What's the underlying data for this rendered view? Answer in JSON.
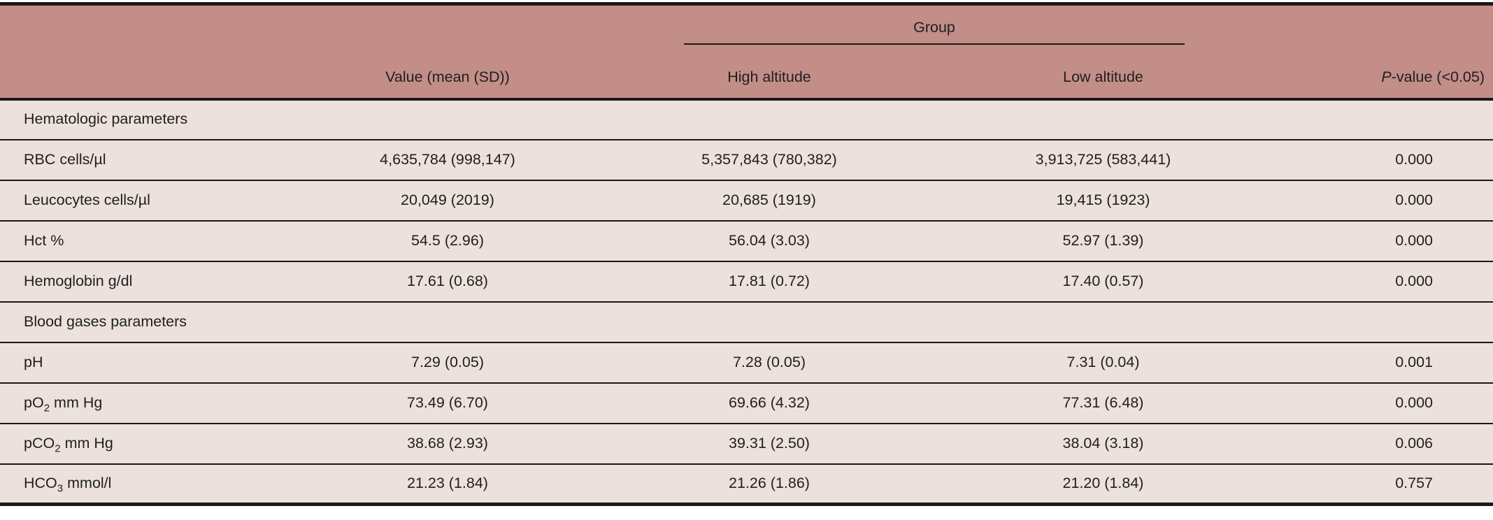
{
  "table": {
    "colors": {
      "header_bg": "#c28e87",
      "row_bg": "#ece1dd",
      "rule_color": "#191919"
    },
    "header": {
      "group_label": "Group",
      "value_col": "Value (mean (SD))",
      "high_col": "High altitude",
      "low_col": "Low altitude",
      "p_col_italic": "P",
      "p_col_rest": "-value (<0.05)"
    },
    "rows": [
      {
        "type": "section",
        "label": "Hematologic parameters"
      },
      {
        "type": "data",
        "label": {
          "pre": "RBC cells/µl",
          "sub": "",
          "post": ""
        },
        "value": "4,635,784 (998,147)",
        "high": "5,357,843 (780,382)",
        "low": "3,913,725 (583,441)",
        "p": "0.000"
      },
      {
        "type": "data",
        "label": {
          "pre": "Leucocytes cells/µl",
          "sub": "",
          "post": ""
        },
        "value": "20,049 (2019)",
        "high": "20,685 (1919)",
        "low": "19,415 (1923)",
        "p": "0.000"
      },
      {
        "type": "data",
        "label": {
          "pre": "Hct %",
          "sub": "",
          "post": ""
        },
        "value": "54.5 (2.96)",
        "high": "56.04 (3.03)",
        "low": "52.97 (1.39)",
        "p": "0.000"
      },
      {
        "type": "data",
        "label": {
          "pre": "Hemoglobin g/dl",
          "sub": "",
          "post": ""
        },
        "value": "17.61 (0.68)",
        "high": "17.81 (0.72)",
        "low": "17.40 (0.57)",
        "p": "0.000"
      },
      {
        "type": "section",
        "label": "Blood gases parameters"
      },
      {
        "type": "data",
        "label": {
          "pre": "pH",
          "sub": "",
          "post": ""
        },
        "value": "7.29 (0.05)",
        "high": "7.28 (0.05)",
        "low": "7.31 (0.04)",
        "p": "0.001"
      },
      {
        "type": "data",
        "label": {
          "pre": "pO",
          "sub": "2",
          "post": " mm Hg"
        },
        "value": "73.49 (6.70)",
        "high": "69.66 (4.32)",
        "low": "77.31 (6.48)",
        "p": "0.000"
      },
      {
        "type": "data",
        "label": {
          "pre": "pCO",
          "sub": "2",
          "post": " mm Hg"
        },
        "value": "38.68 (2.93)",
        "high": "39.31 (2.50)",
        "low": "38.04 (3.18)",
        "p": "0.006"
      },
      {
        "type": "data",
        "label": {
          "pre": "HCO",
          "sub": "3",
          "post": " mmol/l"
        },
        "value": "21.23 (1.84)",
        "high": "21.26 (1.86)",
        "low": "21.20 (1.84)",
        "p": "0.757"
      }
    ]
  }
}
